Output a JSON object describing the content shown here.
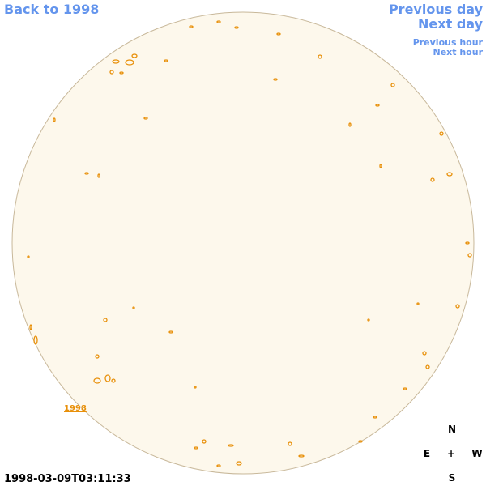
{
  "links": {
    "back": "Back to 1998",
    "previous_day": "Previous day",
    "next_day": "Next day",
    "previous_hour": "Previous hour",
    "next_hour": "Next hour"
  },
  "image": {
    "label": "1998",
    "timestamp": "1998-03-09T03:11:33"
  },
  "compass": {
    "north": "N",
    "east": "E",
    "center": "+",
    "west": "W",
    "south": "S"
  }
}
